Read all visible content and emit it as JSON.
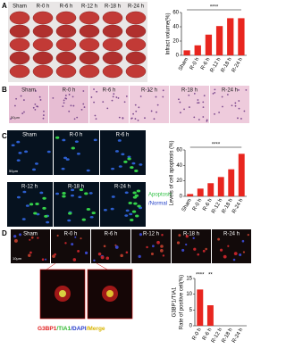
{
  "panels": {
    "a": {
      "letter": "A",
      "labels": [
        "Sham",
        "R-0 h",
        "R-6 h",
        "R-12 h",
        "R-18 h",
        "R-24 h"
      ]
    },
    "b": {
      "letter": "B",
      "labels": [
        "Sham",
        "R-0 h",
        "R-6 h",
        "R-12 h",
        "R-18 h",
        "R-24 h"
      ],
      "scale": "50μm"
    },
    "c": {
      "letter": "C",
      "labels": [
        "Sham",
        "R-0 h",
        "R-6 h",
        "R-12 h",
        "R-18 h",
        "R-24 h"
      ],
      "scale": "50μm",
      "legend": [
        "Apoptosis",
        "/Normal"
      ]
    },
    "d": {
      "letter": "D",
      "labels": [
        "Sham",
        "R-0 h",
        "R-6 h",
        "R-12 h",
        "R-18 h",
        "R-24 h"
      ],
      "scale": "10μm",
      "legend": [
        "G3BP1",
        "/TIA1",
        "/DAPI",
        "/Merge"
      ]
    }
  },
  "chart_data": [
    {
      "type": "bar",
      "ylabel": [
        "Infract volume(%)"
      ],
      "categories": [
        "Sham",
        "R-0 h",
        "R-6 h",
        "R-12 h",
        "R-18 h",
        "R-24 h"
      ],
      "values": [
        7,
        14,
        29,
        41,
        52,
        52
      ],
      "color": "#e8261f",
      "ylim": [
        0,
        60
      ],
      "yticks": [
        0,
        20,
        40,
        60
      ],
      "annotations": [
        "****"
      ]
    },
    {
      "type": "bar",
      "ylabel": [
        "Levels of cell apoptosis (%)"
      ],
      "categories": [
        "Sham",
        "R-0 h",
        "R-6 h",
        "R-12 h",
        "R-18 h",
        "R-24 h"
      ],
      "values": [
        3,
        10,
        17,
        25,
        35,
        55
      ],
      "color": "#e8261f",
      "ylim": [
        0,
        60
      ],
      "yticks": [
        0,
        20,
        40,
        60
      ],
      "annotations": [
        "****"
      ]
    },
    {
      "type": "bar",
      "ylabel": [
        "Rate of positive cell(%)",
        "G3BP1/TIA1"
      ],
      "categories": [
        "R-0 h",
        "R-6 h",
        "R-12 h",
        "R-18 h",
        "R-24 h"
      ],
      "values": [
        11.5,
        6.5,
        0,
        0,
        0
      ],
      "color": "#e8261f",
      "ylim": [
        0,
        15
      ],
      "yticks": [
        0,
        5,
        10,
        15
      ],
      "annotations": [
        "****",
        "**"
      ]
    }
  ]
}
